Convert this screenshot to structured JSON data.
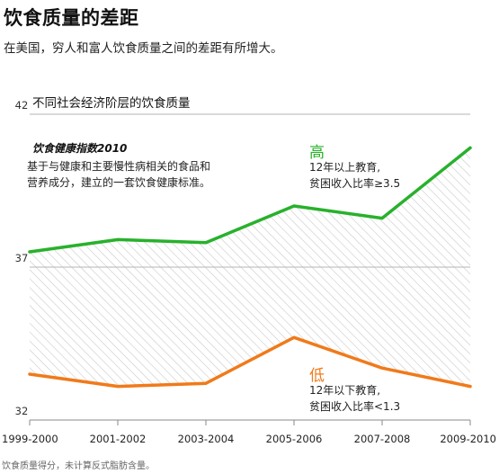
{
  "header": {
    "title": "饮食质量的差距",
    "subtitle": "在美国，穷人和富人饮食质量之间的差距有所增大。"
  },
  "note": {
    "title": "饮食健康指数2010",
    "text": "基于与健康和主要慢性病相关的食品和营养成分，建立的一套饮食健康标准。"
  },
  "footnote": "饮食质量得分，未计算反式脂肪含量。",
  "colors": {
    "high": "#28b12c",
    "low": "#f07a1a",
    "hatch": "#c9c9c9",
    "axis": "#888888"
  },
  "chart_data": {
    "type": "line",
    "title": "不同社会经济阶层的饮食质量",
    "categories": [
      "1999-2000",
      "2001-2002",
      "2003-2004",
      "2005-2006",
      "2007-2008",
      "2009-2010"
    ],
    "ylim": [
      32,
      42
    ],
    "yticks": [
      "42",
      "37",
      "32"
    ],
    "grid": true,
    "series": [
      {
        "key": "high",
        "name": "高",
        "description": [
          "12年以上教育,",
          "贫困收入比率≥3.5"
        ],
        "values": [
          37.5,
          37.9,
          37.8,
          39.0,
          38.6,
          40.9
        ]
      },
      {
        "key": "low",
        "name": "低",
        "description": [
          "12年以下教育,",
          "贫困收入比率<1.3"
        ],
        "values": [
          33.5,
          33.1,
          33.2,
          34.7,
          33.7,
          33.1
        ]
      }
    ]
  }
}
